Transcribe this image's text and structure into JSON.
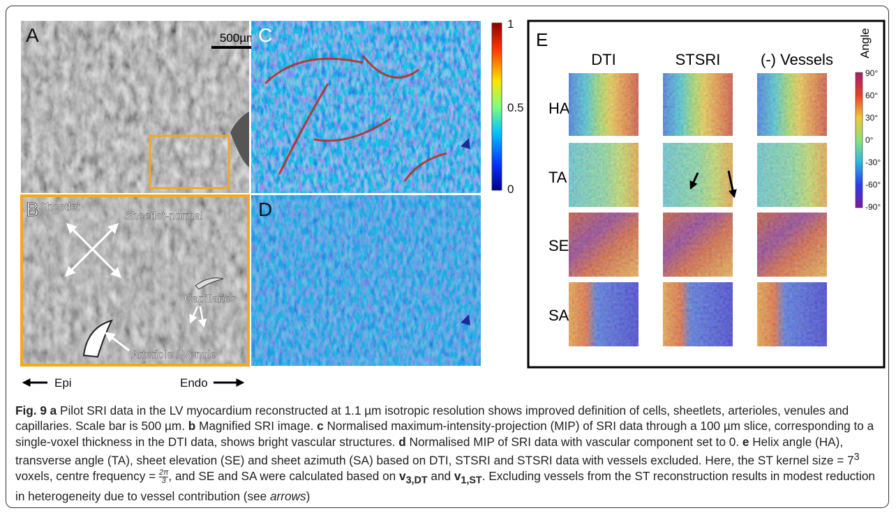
{
  "panels": {
    "a": {
      "label": "A",
      "scale_bar": "500µm"
    },
    "b": {
      "label": "B",
      "annotations": [
        "Sheetlet",
        "Sheetlet-normal",
        "Capillaries",
        "Arteriole / Venule"
      ]
    },
    "c": {
      "label": "C",
      "colorbar_ticks": [
        "1",
        "0.5",
        "0"
      ]
    },
    "d": {
      "label": "D"
    },
    "e": {
      "label": "E",
      "columns": [
        "DTI",
        "STSRI",
        "(-) Vessels"
      ],
      "rows": [
        "HA",
        "TA",
        "SE",
        "SA"
      ],
      "colorbar_title": "Angle",
      "colorbar_ticks": [
        "90°",
        "60°",
        "30°",
        "0°",
        "-30°",
        "-60°",
        "-90°"
      ]
    }
  },
  "direction": {
    "left": "Epi",
    "right": "Endo"
  },
  "caption": {
    "figure": "Fig. 9",
    "a": "a",
    "a_text": " Pilot SRI data in the LV myocardium reconstructed at 1.1 µm isotropic resolution shows improved definition of cells, sheetlets, arterioles, venules and capillaries. Scale bar is 500 µm. ",
    "b": "b",
    "b_text": " Magnified SRI image. ",
    "c": "c",
    "c_text": " Normalised maximum-intensity-projection (MIP) of SRI data through a 100 µm slice, corresponding to a single-voxel thickness in the DTI data, shows bright vascular structures. ",
    "d": "d",
    "d_text": " Normalised MIP of SRI data with vascular component set to 0. ",
    "e": "e",
    "e_text": " Helix angle (HA), transverse angle (TA), sheet elevation (SE) and sheet azimuth (SA) based on DTI, STSRI and STSRI data with vessels excluded. Here, the ST kernel size = 7",
    "kernel_exponent": "3",
    "e_text2": " voxels, centre frequency = ",
    "frequency_numerator": "2π",
    "frequency_denominator": "3",
    "e_text3": ", and SE and SA were calculated based on ",
    "vector1": "v",
    "vector1_sub": "3,DT",
    "e_text4": " and ",
    "vector2": "v",
    "vector2_sub": "1,ST",
    "e_text5": ". Excluding vessels from the ST reconstruction results in modest reduction in heterogeneity due to vessel contribution (see ",
    "arrows": "arrows",
    "end": ")"
  }
}
